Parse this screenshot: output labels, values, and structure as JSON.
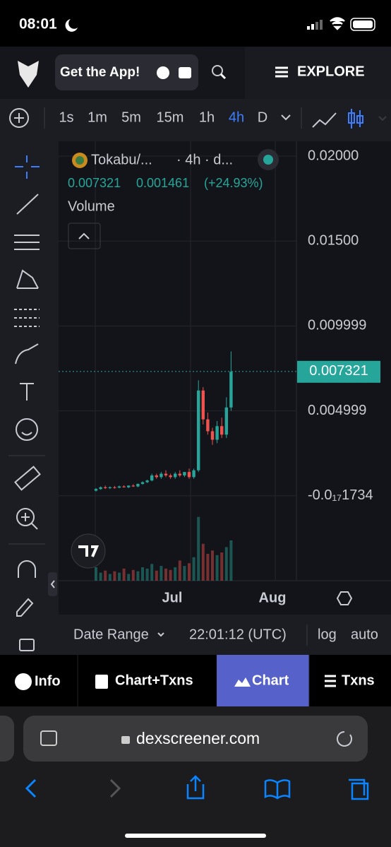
{
  "status_bar": {
    "time": "08:01"
  },
  "header": {
    "app_button": "Get the App!",
    "explore": "EXPLORE"
  },
  "toolbar": {
    "timeframes": [
      "1s",
      "1m",
      "5m",
      "15m",
      "1h",
      "4h",
      "D"
    ],
    "active": "4h"
  },
  "chart_data": {
    "type": "candlestick",
    "title": "Tokabu/...",
    "subtitle": "· 4h · d...",
    "legend_values": [
      "0.007321",
      "0.001461",
      "(+24.93%)"
    ],
    "volume_label": "Volume",
    "open": [
      0.0003,
      0.0004,
      0.0005,
      0.00045,
      0.0005,
      0.00048,
      0.00055,
      0.0005,
      0.0006,
      0.00055,
      0.0007,
      0.0008,
      0.0009,
      0.0012,
      0.0011,
      0.0013,
      0.0012,
      0.0011,
      0.0013,
      0.0012,
      0.0014,
      0.0011,
      0.0015,
      0.0062,
      0.0045,
      0.0038,
      0.0033,
      0.0041,
      0.0036,
      0.0052
    ],
    "high": [
      0.00045,
      0.00055,
      0.0006,
      0.00055,
      0.00058,
      0.0006,
      0.00062,
      0.0006,
      0.00068,
      0.00072,
      0.00085,
      0.00095,
      0.0013,
      0.0013,
      0.0014,
      0.0015,
      0.0013,
      0.0014,
      0.0015,
      0.0014,
      0.0016,
      0.0016,
      0.0068,
      0.0064,
      0.0049,
      0.004,
      0.0044,
      0.0046,
      0.0058,
      0.0085
    ],
    "low": [
      0.00025,
      0.00035,
      0.0004,
      0.0004,
      0.00042,
      0.00044,
      0.00048,
      0.00045,
      0.00052,
      0.0005,
      0.00065,
      0.00075,
      0.00085,
      0.001,
      0.001,
      0.0011,
      0.001,
      0.001,
      0.0011,
      0.0011,
      0.001,
      0.001,
      0.0014,
      0.0042,
      0.0036,
      0.003,
      0.0031,
      0.0034,
      0.0034,
      0.005
    ],
    "close": [
      0.0004,
      0.0005,
      0.00045,
      0.0005,
      0.00048,
      0.00055,
      0.0005,
      0.0006,
      0.00055,
      0.0007,
      0.0008,
      0.0009,
      0.0012,
      0.0011,
      0.0013,
      0.0012,
      0.0011,
      0.0013,
      0.0012,
      0.0014,
      0.0011,
      0.0015,
      0.0062,
      0.0045,
      0.0038,
      0.0033,
      0.0041,
      0.0036,
      0.0052,
      0.0073
    ],
    "volume": [
      20,
      12,
      15,
      10,
      14,
      12,
      18,
      10,
      16,
      14,
      20,
      18,
      25,
      15,
      22,
      18,
      16,
      20,
      30,
      22,
      26,
      35,
      95,
      55,
      40,
      45,
      38,
      42,
      50,
      60
    ],
    "up_color": "#26a69a",
    "down_color": "#ef5350",
    "last_price": 0.007321,
    "ylim": [
      -0.005,
      0.020875
    ],
    "yticks": [
      {
        "value": 0.02,
        "label": "0.02000"
      },
      {
        "value": 0.015,
        "label": "0.01500"
      },
      0.009999,
      0.004999,
      {
        "value": -1.734e-18,
        "label": "-0.0₁₇1734"
      }
    ],
    "grid": true,
    "x_labels": [
      "Jul",
      "Aug"
    ]
  },
  "footer": {
    "date_range": "Date Range",
    "time": "22:01:12 (UTC)",
    "log": "log",
    "auto": "auto"
  },
  "tabs": [
    "Info",
    "Chart+Txns",
    "Chart",
    "Txns"
  ],
  "browser": {
    "url": "dexscreener.com"
  }
}
